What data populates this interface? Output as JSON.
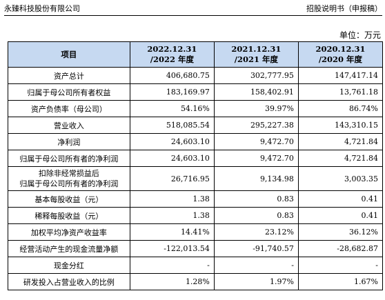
{
  "header": {
    "left": "永臻科技股份有限公司",
    "right": "招股说明书（申报稿）"
  },
  "unit": "单位：万元",
  "table": {
    "columns": [
      {
        "line1": "项目",
        "line2": ""
      },
      {
        "line1": "2022.12.31",
        "line2": "/2022 年度"
      },
      {
        "line1": "2021.12.31",
        "line2": "/2021 年度"
      },
      {
        "line1": "2020.12.31",
        "line2": "/2020 年度"
      }
    ],
    "rows": [
      {
        "label": "资产总计",
        "label2": "",
        "values": [
          "406,680.75",
          "302,777.95",
          "147,417.14"
        ]
      },
      {
        "label": "归属于母公司所有者权益",
        "label2": "",
        "values": [
          "183,169.97",
          "158,402.91",
          "13,761.18"
        ]
      },
      {
        "label": "资产负债率（母公司）",
        "label2": "",
        "values": [
          "54.16%",
          "39.97%",
          "86.74%"
        ]
      },
      {
        "label": "营业收入",
        "label2": "",
        "values": [
          "518,085.54",
          "295,227.38",
          "143,310.15"
        ]
      },
      {
        "label": "净利润",
        "label2": "",
        "values": [
          "24,603.10",
          "9,472.70",
          "4,721.84"
        ]
      },
      {
        "label": "归属于母公司所有者的净利润",
        "label2": "",
        "values": [
          "24,603.10",
          "9,472.70",
          "4,721.84"
        ]
      },
      {
        "label": "扣除非经常损益后",
        "label2": "归属于母公司所有者的净利润",
        "values": [
          "26,716.95",
          "9,134.98",
          "3,003.35"
        ]
      },
      {
        "label": "基本每股收益（元）",
        "label2": "",
        "values": [
          "1.38",
          "0.83",
          "0.41"
        ]
      },
      {
        "label": "稀释每股收益（元）",
        "label2": "",
        "values": [
          "1.38",
          "0.83",
          "0.41"
        ]
      },
      {
        "label": "加权平均净资产收益率",
        "label2": "",
        "values": [
          "14.41%",
          "23.12%",
          "36.12%"
        ]
      },
      {
        "label": "经营活动产生的现金流量净额",
        "label2": "",
        "values": [
          "-122,013.54",
          "-91,740.57",
          "-28,682.87"
        ]
      },
      {
        "label": "现金分红",
        "label2": "",
        "values": [
          "-",
          "-",
          "-"
        ]
      },
      {
        "label": "研发投入占营业收入的比例",
        "label2": "",
        "values": [
          "1.28%",
          "1.97%",
          "1.67%"
        ]
      }
    ]
  }
}
